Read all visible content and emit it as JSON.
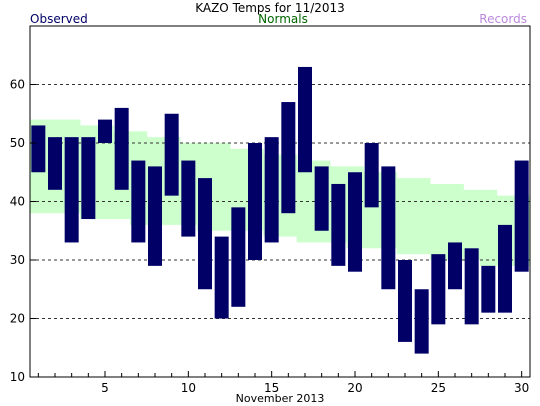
{
  "title": "KAZO Temps for  11/2013",
  "legend": {
    "observed": "Observed",
    "normals": "Normals",
    "records": "Records"
  },
  "colors": {
    "observed": "#000066",
    "normals_fill": "#ccffcc",
    "normals_text": "#006600",
    "records_text": "#bb88dd",
    "grid": "#333333"
  },
  "chart_data": {
    "type": "bar",
    "title": "KAZO Temps for  11/2013",
    "xlabel": "November 2013",
    "ylabel": "",
    "ylim": [
      10,
      70
    ],
    "xlim": [
      0.5,
      30.5
    ],
    "yticks": [
      10,
      20,
      30,
      40,
      50,
      60
    ],
    "xticks": [
      5,
      10,
      15,
      20,
      25,
      30
    ],
    "grid": "dashed horizontal lines at 20, 30, 40, 50, 60",
    "legend_placement": "top",
    "days": [
      1,
      2,
      3,
      4,
      5,
      6,
      7,
      8,
      9,
      10,
      11,
      12,
      13,
      14,
      15,
      16,
      17,
      18,
      19,
      20,
      21,
      22,
      23,
      24,
      25,
      26,
      27,
      28,
      29,
      30
    ],
    "series": [
      {
        "name": "Observed",
        "high": [
          53,
          51,
          51,
          51,
          54,
          56,
          47,
          46,
          55,
          47,
          44,
          34,
          39,
          50,
          51,
          57,
          63,
          46,
          43,
          45,
          50,
          46,
          30,
          25,
          31,
          33,
          32,
          29,
          36,
          47
        ],
        "low": [
          45,
          42,
          33,
          37,
          50,
          42,
          33,
          29,
          41,
          34,
          25,
          20,
          22,
          30,
          33,
          38,
          45,
          35,
          29,
          28,
          39,
          25,
          16,
          14,
          19,
          25,
          19,
          21,
          21,
          28
        ]
      },
      {
        "name": "Normals",
        "high": [
          54,
          54,
          54,
          53,
          53,
          52,
          52,
          51,
          51,
          50,
          50,
          50,
          49,
          49,
          48,
          48,
          47,
          47,
          46,
          46,
          45,
          45,
          44,
          44,
          43,
          43,
          42,
          42,
          41,
          41
        ],
        "low": [
          38,
          38,
          38,
          37,
          37,
          37,
          36,
          36,
          36,
          36,
          35,
          35,
          35,
          35,
          34,
          34,
          33,
          33,
          33,
          32,
          32,
          32,
          31,
          31,
          30,
          30,
          30,
          29,
          29,
          29
        ]
      }
    ]
  }
}
